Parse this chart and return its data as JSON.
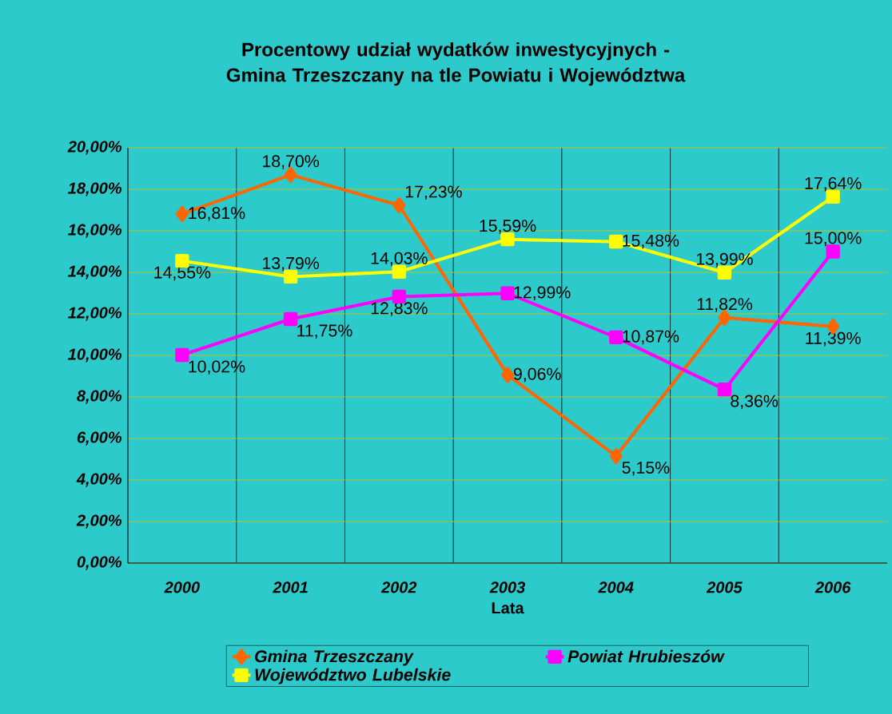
{
  "chart_data": {
    "type": "line",
    "title": "Procentowy udział wydatków inwestycyjnych -Gmina Trzeszczany na tle Powiatu i Województwa",
    "xlabel": "Lata",
    "categories": [
      "2000",
      "2001",
      "2002",
      "2003",
      "2004",
      "2005",
      "2006"
    ],
    "series": [
      {
        "name": "Gmina Trzeszczany",
        "color": "#ff6600",
        "marker": "diamond",
        "values": [
          16.81,
          18.7,
          17.23,
          9.06,
          5.15,
          11.82,
          11.39
        ],
        "value_labels": [
          "16,81%",
          "18,70%",
          "17,23%",
          "9,06%",
          "5,15%",
          "11,82%",
          "11,39%"
        ]
      },
      {
        "name": "Powiat Hrubieszów",
        "color": "#ff00ff",
        "marker": "square",
        "values": [
          10.02,
          11.75,
          12.83,
          12.99,
          10.87,
          8.36,
          15.0
        ],
        "value_labels": [
          "10,02%",
          "11,75%",
          "12,83%",
          "12,99%",
          "10,87%",
          "8,36%",
          "15,00%"
        ]
      },
      {
        "name": "Województwo Lubelskie",
        "color": "#ffff00",
        "marker": "square",
        "values": [
          14.55,
          13.79,
          14.03,
          15.59,
          15.48,
          13.99,
          17.64
        ],
        "value_labels": [
          "14,55%",
          "13,79%",
          "14,03%",
          "15,59%",
          "15,48%",
          "13,99%",
          "17,64%"
        ]
      }
    ],
    "ylim": [
      0,
      20
    ],
    "yticks": [
      {
        "value": 0,
        "label": "0,00%"
      },
      {
        "value": 2,
        "label": "2,00%"
      },
      {
        "value": 4,
        "label": "4,00%"
      },
      {
        "value": 6,
        "label": "6,00%"
      },
      {
        "value": 8,
        "label": "8,00%"
      },
      {
        "value": 10,
        "label": "10,00%"
      },
      {
        "value": 12,
        "label": "12,00%"
      },
      {
        "value": 14,
        "label": "14,00%"
      },
      {
        "value": 16,
        "label": "16,00%"
      },
      {
        "value": 18,
        "label": "18,00%"
      },
      {
        "value": 20,
        "label": "20,00%"
      }
    ],
    "grid": true,
    "legend": "bottom",
    "line_style": "solid"
  }
}
